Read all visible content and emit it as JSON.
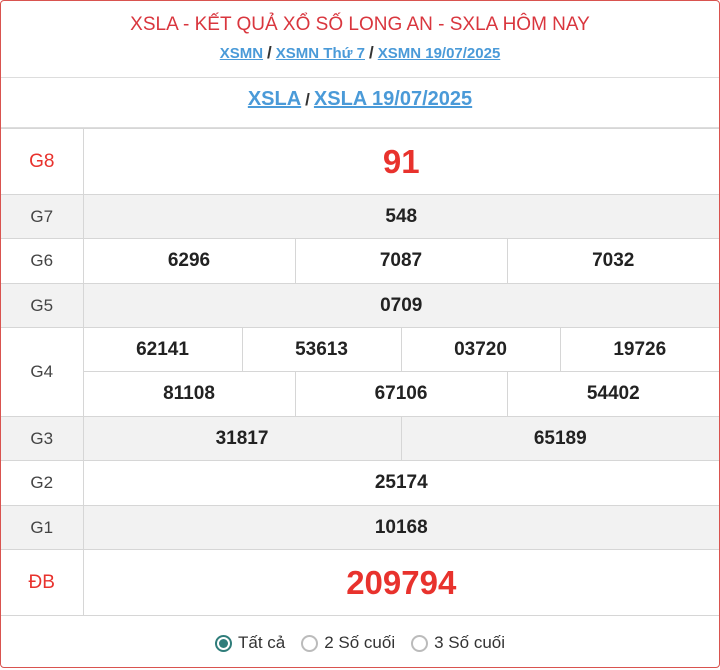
{
  "header": {
    "title": "XSLA - KẾT QUẢ XỔ SỐ LONG AN - SXLA HÔM NAY",
    "breadcrumb": [
      "XSMN",
      "XSMN Thứ 7",
      "XSMN 19/07/2025"
    ],
    "sub": [
      "XSLA",
      "XSLA 19/07/2025"
    ]
  },
  "prizes": {
    "g8": {
      "label": "G8",
      "values": [
        "91"
      ]
    },
    "g7": {
      "label": "G7",
      "values": [
        "548"
      ]
    },
    "g6": {
      "label": "G6",
      "values": [
        "6296",
        "7087",
        "7032"
      ]
    },
    "g5": {
      "label": "G5",
      "values": [
        "0709"
      ]
    },
    "g4": {
      "label": "G4",
      "values": [
        "62141",
        "53613",
        "03720",
        "19726",
        "81108",
        "67106",
        "54402"
      ]
    },
    "g3": {
      "label": "G3",
      "values": [
        "31817",
        "65189"
      ]
    },
    "g2": {
      "label": "G2",
      "values": [
        "25174"
      ]
    },
    "g1": {
      "label": "G1",
      "values": [
        "10168"
      ]
    },
    "db": {
      "label": "ĐB",
      "values": [
        "209794"
      ]
    }
  },
  "filter": {
    "options": [
      "Tất cả",
      "2 Số cuối",
      "3 Số cuối"
    ],
    "selected": "Tất cả"
  },
  "colors": {
    "accent_red": "#e8322d",
    "link": "#4a9ad8",
    "radio": "#2f7d7a"
  }
}
